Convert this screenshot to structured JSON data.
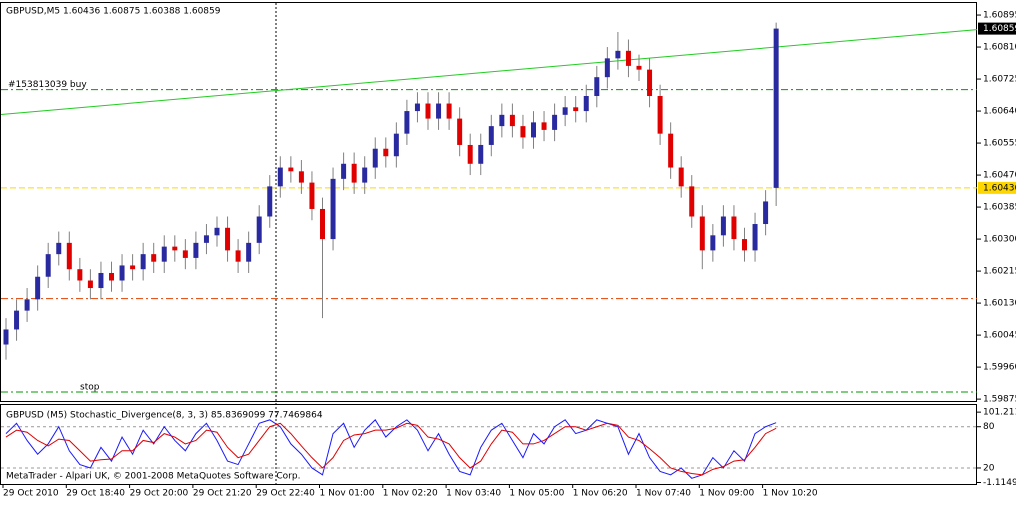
{
  "chart_data": {
    "type": "candlestick",
    "title": "GBPUSD,M5  1.60436 1.60875 1.60388 1.60859",
    "footer": "MetaTrader - Alpari UK, © 2001-2008 MetaQuotes Software Corp.",
    "categories": [
      "29 Oct 2010",
      null,
      null,
      null,
      null,
      null,
      "29 Oct 18:40",
      null,
      null,
      null,
      null,
      null,
      "29 Oct 20:00",
      null,
      null,
      null,
      null,
      null,
      "29 Oct 21:20",
      null,
      null,
      null,
      null,
      null,
      "29 Oct 22:40",
      null,
      null,
      null,
      null,
      null,
      "1 Nov 01:00",
      null,
      null,
      null,
      null,
      null,
      "1 Nov 02:20",
      null,
      null,
      null,
      null,
      null,
      "1 Nov 03:40",
      null,
      null,
      null,
      null,
      null,
      "1 Nov 05:00",
      null,
      null,
      null,
      null,
      null,
      "1 Nov 06:20",
      null,
      null,
      null,
      null,
      null,
      "1 Nov 07:40",
      null,
      null,
      null,
      null,
      null,
      "1 Nov 09:00",
      null,
      null,
      null,
      null,
      null,
      "1 Nov 10:20",
      null
    ],
    "open": [
      1.6002,
      1.6006,
      1.6011,
      1.6014,
      1.602,
      1.6026,
      1.6029,
      1.6022,
      1.6019,
      1.6017,
      1.6021,
      1.6019,
      1.6023,
      1.6022,
      1.6026,
      1.6024,
      1.6028,
      1.6027,
      1.6025,
      1.6029,
      1.6031,
      1.6033,
      1.6027,
      1.6024,
      1.6029,
      1.6036,
      1.6044,
      1.6049,
      1.6048,
      1.6045,
      1.6038,
      1.603,
      1.6046,
      1.605,
      1.6045,
      1.6049,
      1.6054,
      1.6052,
      1.6058,
      1.6064,
      1.6066,
      1.6062,
      1.6066,
      1.6062,
      1.6055,
      1.605,
      1.6055,
      1.606,
      1.6063,
      1.606,
      1.6057,
      1.6061,
      1.6059,
      1.6063,
      1.6065,
      1.6064,
      1.6068,
      1.6073,
      1.6078,
      1.608,
      1.6076,
      1.6075,
      1.6068,
      1.6058,
      1.6049,
      1.6044,
      1.6036,
      1.6027,
      1.6031,
      1.6036,
      1.603,
      1.6027,
      1.6034,
      1.60436
    ],
    "high": [
      1.6009,
      1.6014,
      1.6017,
      1.6023,
      1.6029,
      1.6032,
      1.6032,
      1.6025,
      1.6022,
      1.6024,
      1.6024,
      1.6026,
      1.6026,
      1.6029,
      1.6029,
      1.6031,
      1.6031,
      1.603,
      1.6032,
      1.6034,
      1.6036,
      1.6036,
      1.603,
      1.6032,
      1.6039,
      1.6047,
      1.6052,
      1.6052,
      1.6051,
      1.6048,
      1.6041,
      1.6049,
      1.6053,
      1.6053,
      1.6052,
      1.6057,
      1.6057,
      1.6061,
      1.6067,
      1.6069,
      1.6069,
      1.6069,
      1.6069,
      1.6065,
      1.6058,
      1.6058,
      1.6063,
      1.6066,
      1.6066,
      1.6063,
      1.6064,
      1.6064,
      1.6066,
      1.6068,
      1.6068,
      1.6071,
      1.6076,
      1.6081,
      1.6085,
      1.6083,
      1.6079,
      1.6078,
      1.6071,
      1.6061,
      1.6052,
      1.6047,
      1.6039,
      1.6034,
      1.6039,
      1.6039,
      1.6033,
      1.6037,
      1.6043,
      1.60875
    ],
    "low": [
      1.5998,
      1.6003,
      1.6008,
      1.6011,
      1.6017,
      1.6023,
      1.6019,
      1.6016,
      1.6014,
      1.6014,
      1.6016,
      1.6016,
      1.6019,
      1.6019,
      1.6021,
      1.6021,
      1.6024,
      1.6022,
      1.6022,
      1.6026,
      1.6028,
      1.6024,
      1.6021,
      1.6021,
      1.6026,
      1.6033,
      1.6041,
      1.6045,
      1.6042,
      1.6035,
      1.6009,
      1.6027,
      1.6043,
      1.6042,
      1.6042,
      1.6046,
      1.6049,
      1.6049,
      1.6055,
      1.6061,
      1.6059,
      1.6059,
      1.6059,
      1.6052,
      1.6047,
      1.6047,
      1.6052,
      1.6057,
      1.6057,
      1.6054,
      1.6054,
      1.6056,
      1.6056,
      1.606,
      1.6061,
      1.6061,
      1.6065,
      1.607,
      1.6075,
      1.6073,
      1.6072,
      1.6065,
      1.6055,
      1.6046,
      1.6041,
      1.6033,
      1.6022,
      1.6024,
      1.6028,
      1.6027,
      1.6024,
      1.6024,
      1.6031,
      1.60388
    ],
    "close": [
      1.6006,
      1.6011,
      1.6014,
      1.602,
      1.6026,
      1.6029,
      1.6022,
      1.6019,
      1.6017,
      1.6021,
      1.6019,
      1.6023,
      1.6022,
      1.6026,
      1.6024,
      1.6028,
      1.6027,
      1.6025,
      1.6029,
      1.6031,
      1.6033,
      1.6027,
      1.6024,
      1.6029,
      1.6036,
      1.6044,
      1.6049,
      1.6048,
      1.6045,
      1.6038,
      1.603,
      1.6046,
      1.605,
      1.6045,
      1.6049,
      1.6054,
      1.6052,
      1.6058,
      1.6064,
      1.6066,
      1.6062,
      1.6066,
      1.6062,
      1.6055,
      1.605,
      1.6055,
      1.606,
      1.6063,
      1.606,
      1.6057,
      1.6061,
      1.6059,
      1.6063,
      1.6065,
      1.6064,
      1.6068,
      1.6073,
      1.6078,
      1.608,
      1.6076,
      1.6075,
      1.6068,
      1.6058,
      1.6049,
      1.6044,
      1.6036,
      1.6027,
      1.6031,
      1.6036,
      1.603,
      1.6027,
      1.6034,
      1.604,
      1.60859
    ],
    "up_color": "#2a2aa0",
    "down_color": "#e00000",
    "wick_color": "#808080",
    "ylim": [
      1.5987,
      1.60927
    ],
    "yticks": [
      {
        "value": 1.60895,
        "label": "1.60895"
      },
      {
        "value": 1.6081,
        "label": "1.60810"
      },
      {
        "value": 1.60725,
        "label": "1.60725"
      },
      {
        "value": 1.6064,
        "label": "1.60640"
      },
      {
        "value": 1.60555,
        "label": "1.60555"
      },
      {
        "value": 1.6047,
        "label": "1.60470"
      },
      {
        "value": 1.60385,
        "label": "1.60385"
      },
      {
        "value": 1.603,
        "label": "1.60300"
      },
      {
        "value": 1.60215,
        "label": "1.60215"
      },
      {
        "value": 1.6013,
        "label": "1.60130"
      },
      {
        "value": 1.60045,
        "label": "1.60045"
      },
      {
        "value": 1.5996,
        "label": "1.59960"
      },
      {
        "value": 1.59875,
        "label": "1.59875"
      }
    ],
    "bid_line": {
      "value": 1.60436,
      "color": "#ffd700"
    },
    "levels": [
      {
        "label": "#153813039 buy",
        "value": 1.60697,
        "color": "#009a00"
      },
      {
        "label": "stop",
        "value": 1.59894,
        "color": "#009a00"
      },
      {
        "value": 1.60142,
        "color": "#e04000"
      }
    ],
    "trendline": {
      "color": "#22cc22",
      "values": [
        1.60632,
        1.6081
      ]
    },
    "indicator": {
      "type": "line",
      "title": "GBPUSD (M5)  Stochastic_Divergence(8, 3, 3) 85.8369099 77.7469864",
      "ylim": [
        -3.3,
        111.6
      ],
      "yticks": [
        101.211,
        80,
        20,
        -1.1149
      ],
      "levels": [
        80,
        20
      ],
      "series": [
        {
          "name": "Main",
          "color": "#1a1aff",
          "values": [
            70,
            85,
            60,
            40,
            55,
            80,
            45,
            25,
            20,
            50,
            30,
            65,
            40,
            75,
            55,
            80,
            60,
            45,
            70,
            85,
            60,
            30,
            25,
            55,
            85,
            90,
            80,
            55,
            40,
            20,
            10,
            70,
            85,
            50,
            75,
            90,
            65,
            80,
            90,
            75,
            45,
            70,
            40,
            15,
            10,
            50,
            75,
            85,
            60,
            35,
            70,
            55,
            80,
            90,
            70,
            75,
            90,
            85,
            80,
            40,
            70,
            35,
            15,
            10,
            20,
            5,
            10,
            35,
            20,
            45,
            30,
            70,
            80,
            85.8369099
          ]
        },
        {
          "name": "Signal",
          "color": "#e00000",
          "values": [
            65,
            75,
            72,
            60,
            52,
            62,
            60,
            45,
            30,
            32,
            33,
            45,
            45,
            60,
            57,
            70,
            65,
            55,
            60,
            75,
            72,
            50,
            35,
            40,
            60,
            80,
            85,
            70,
            52,
            35,
            20,
            35,
            60,
            68,
            70,
            75,
            75,
            78,
            85,
            82,
            65,
            62,
            55,
            35,
            20,
            30,
            55,
            75,
            72,
            55,
            55,
            60,
            70,
            80,
            80,
            75,
            80,
            85,
            82,
            65,
            60,
            48,
            35,
            20,
            15,
            12,
            10,
            18,
            22,
            30,
            32,
            50,
            70,
            77.7469864
          ]
        }
      ]
    }
  }
}
